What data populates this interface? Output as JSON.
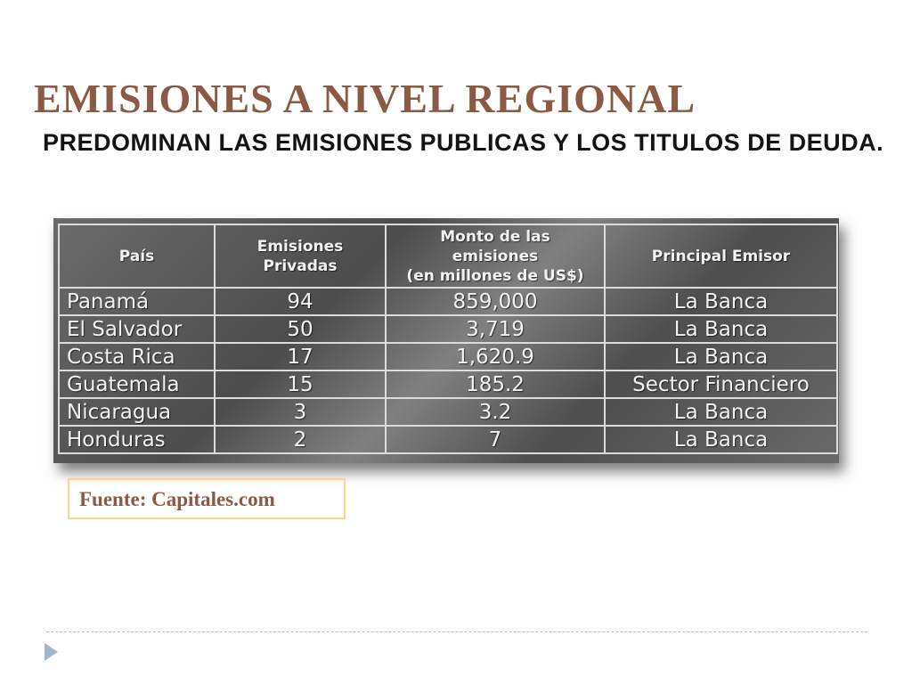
{
  "slide": {
    "title": "EMISIONES A NIVEL REGIONAL",
    "subtitle": "PREDOMINAN LAS EMISIONES PUBLICAS Y LOS TITULOS DE DEUDA."
  },
  "table": {
    "headers": [
      "País",
      "Emisiones\nPrivadas",
      "Monto de las\nemisiones\n(en millones de US$)",
      "Principal Emisor"
    ],
    "rows": [
      [
        "Panamá",
        "94",
        "859,000",
        "La Banca"
      ],
      [
        "El Salvador",
        "50",
        "3,719",
        "La Banca"
      ],
      [
        "Costa Rica",
        "17",
        "1,620.9",
        "La Banca"
      ],
      [
        "Guatemala",
        "15",
        "185.2",
        "Sector Financiero"
      ],
      [
        "Nicaragua",
        "3",
        "3.2",
        "La Banca"
      ],
      [
        "Honduras",
        "2",
        "7",
        "La Banca"
      ]
    ]
  },
  "source": "Fuente: Capitales.com",
  "colors": {
    "title": "#8b5a45",
    "source_border": "#f3d98a",
    "divider": "#a9bfd0",
    "arrow": "#a3b5c8"
  },
  "icons": {
    "bullet": "arrow-icon"
  }
}
